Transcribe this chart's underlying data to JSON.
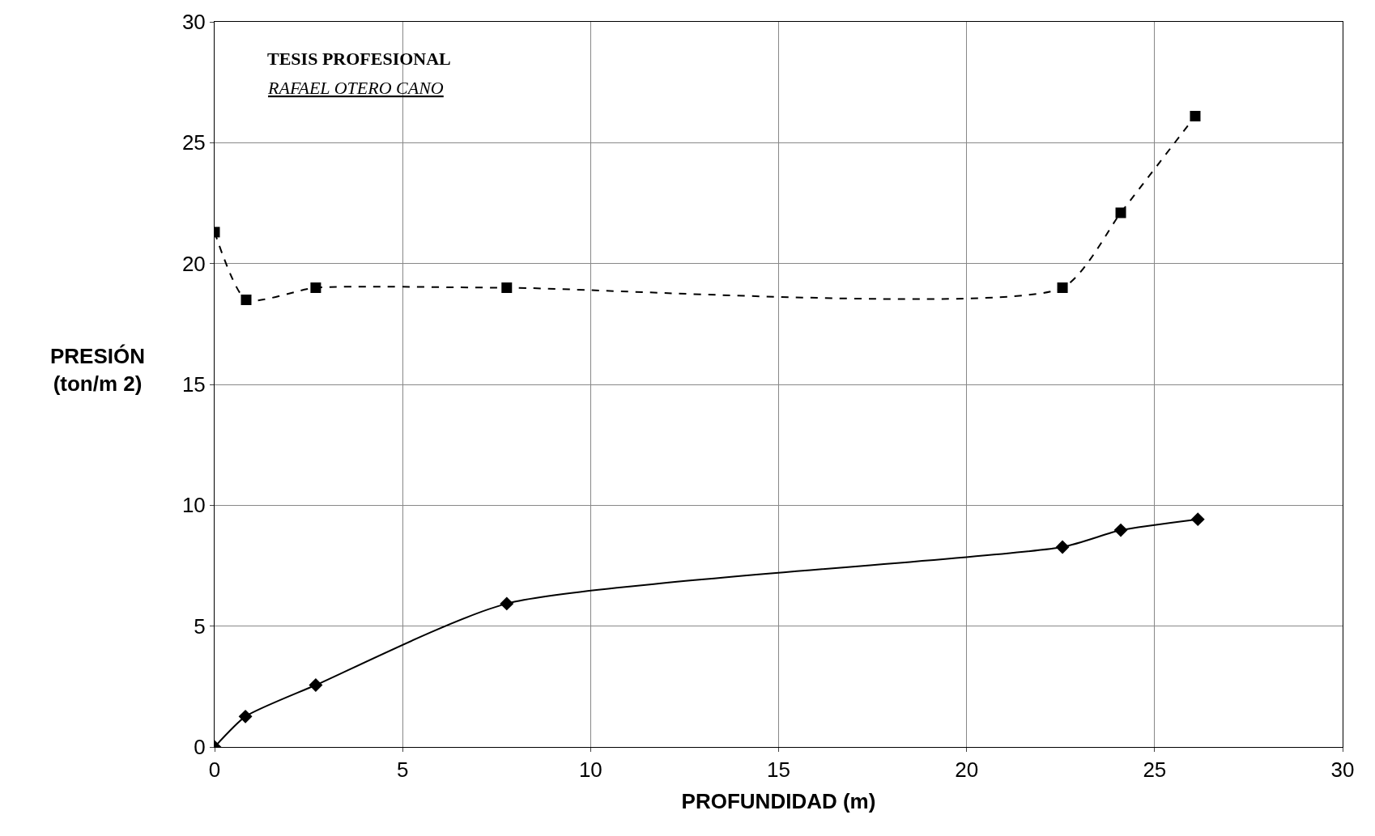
{
  "chart_data": {
    "type": "line",
    "xlabel": "PROFUNDIDAD (m)",
    "ylabel": "PRESIÓN\n(ton/m 2)",
    "annotations": [
      "TESIS PROFESIONAL",
      "RAFAEL OTERO CANO"
    ],
    "series": [
      {
        "color": "#000000",
        "marker": "square",
        "line_style": "dashed",
        "x": [
          0,
          0.84,
          2.69,
          7.77,
          22.55,
          24.1,
          26.08
        ],
        "values": [
          21.3,
          18.5,
          19.0,
          19.0,
          19.0,
          22.1,
          26.1
        ]
      },
      {
        "color": "#000000",
        "marker": "diamond",
        "line_style": "solid",
        "x": [
          0,
          0.82,
          2.69,
          7.77,
          22.55,
          24.1,
          26.15
        ],
        "values": [
          0,
          1.26,
          2.56,
          5.93,
          8.27,
          8.97,
          9.42
        ]
      }
    ],
    "xlim": [
      0,
      30
    ],
    "xticks": [
      0,
      5,
      10,
      15,
      20,
      25,
      30
    ],
    "ylim": [
      0,
      30
    ],
    "yticks": [
      0,
      5,
      10,
      15,
      20,
      25,
      30
    ],
    "grid": true,
    "legend": false
  }
}
